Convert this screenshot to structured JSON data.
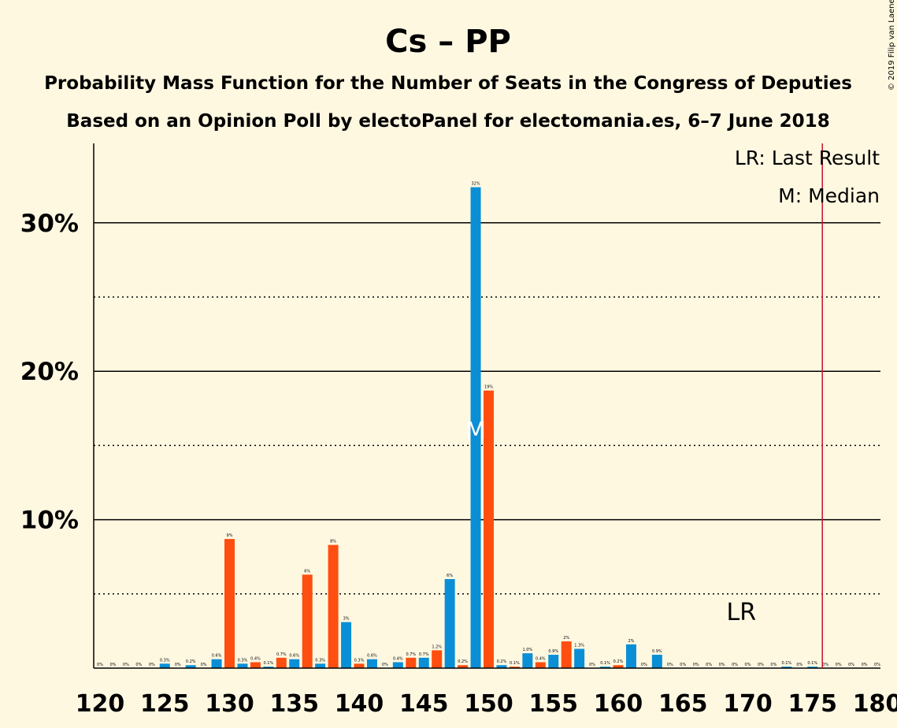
{
  "chart_data": {
    "type": "bar",
    "title": "Cs – PP",
    "subtitle": "Probability Mass Function for the Number of Seats in the Congress of Deputies",
    "source_line": "Based on an Opinion Poll by electoPanel for electomania.es, 6–7 June 2018",
    "copyright": "© 2019 Filip van Laenen",
    "legend": [
      "LR: Last Result",
      "M: Median"
    ],
    "xlim": [
      120,
      180
    ],
    "ylim": [
      0,
      35
    ],
    "yticks": [
      {
        "value": 10,
        "label": "10%"
      },
      {
        "value": 20,
        "label": "20%"
      },
      {
        "value": 30,
        "label": "30%"
      }
    ],
    "xticks": [
      120,
      125,
      130,
      135,
      140,
      145,
      150,
      155,
      160,
      165,
      170,
      175,
      180
    ],
    "grid": {
      "solid": [
        10,
        20,
        30
      ],
      "dotted": [
        5,
        15,
        25
      ]
    },
    "colors": {
      "odd": "#0A8FD6",
      "even": "#FF4E0F",
      "last_result_line": "#C8102E",
      "background": "#FFF8E1"
    },
    "last_result": {
      "seats": 176,
      "label": "LR"
    },
    "median": {
      "seats": 149,
      "label": "M"
    },
    "bars": [
      {
        "seats": 120,
        "value": 0,
        "label": "0%"
      },
      {
        "seats": 121,
        "value": 0,
        "label": "0%"
      },
      {
        "seats": 122,
        "value": 0,
        "label": "0%"
      },
      {
        "seats": 123,
        "value": 0,
        "label": "0%"
      },
      {
        "seats": 124,
        "value": 0,
        "label": "0%"
      },
      {
        "seats": 125,
        "value": 0.3,
        "label": "0.3%"
      },
      {
        "seats": 126,
        "value": 0,
        "label": "0%"
      },
      {
        "seats": 127,
        "value": 0.2,
        "label": "0.2%"
      },
      {
        "seats": 128,
        "value": 0,
        "label": "0%"
      },
      {
        "seats": 129,
        "value": 0.6,
        "label": "0.6%"
      },
      {
        "seats": 130,
        "value": 8.7,
        "label": "9%"
      },
      {
        "seats": 131,
        "value": 0.3,
        "label": "0.3%"
      },
      {
        "seats": 132,
        "value": 0.4,
        "label": "0.4%"
      },
      {
        "seats": 133,
        "value": 0.1,
        "label": "0.1%"
      },
      {
        "seats": 134,
        "value": 0.7,
        "label": "0.7%"
      },
      {
        "seats": 135,
        "value": 0.6,
        "label": "0.6%"
      },
      {
        "seats": 136,
        "value": 6.3,
        "label": "6%"
      },
      {
        "seats": 137,
        "value": 0.3,
        "label": "0.3%"
      },
      {
        "seats": 138,
        "value": 8.3,
        "label": "8%"
      },
      {
        "seats": 139,
        "value": 3.1,
        "label": "3%"
      },
      {
        "seats": 140,
        "value": 0.3,
        "label": "0.3%"
      },
      {
        "seats": 141,
        "value": 0.6,
        "label": "0.6%"
      },
      {
        "seats": 142,
        "value": 0,
        "label": "0%"
      },
      {
        "seats": 143,
        "value": 0.4,
        "label": "0.4%"
      },
      {
        "seats": 144,
        "value": 0.7,
        "label": "0.7%"
      },
      {
        "seats": 145,
        "value": 0.7,
        "label": "0.7%"
      },
      {
        "seats": 146,
        "value": 1.2,
        "label": "1.2%"
      },
      {
        "seats": 147,
        "value": 6.0,
        "label": "6%"
      },
      {
        "seats": 148,
        "value": 0.2,
        "label": "0.2%"
      },
      {
        "seats": 149,
        "value": 32.4,
        "label": "32%"
      },
      {
        "seats": 150,
        "value": 18.7,
        "label": "19%"
      },
      {
        "seats": 151,
        "value": 0.2,
        "label": "0.2%"
      },
      {
        "seats": 152,
        "value": 0.1,
        "label": "0.1%"
      },
      {
        "seats": 153,
        "value": 1.0,
        "label": "1.0%"
      },
      {
        "seats": 154,
        "value": 0.4,
        "label": "0.4%"
      },
      {
        "seats": 155,
        "value": 0.9,
        "label": "0.9%"
      },
      {
        "seats": 156,
        "value": 1.8,
        "label": "2%"
      },
      {
        "seats": 157,
        "value": 1.3,
        "label": "1.3%"
      },
      {
        "seats": 158,
        "value": 0,
        "label": "0%"
      },
      {
        "seats": 159,
        "value": 0.1,
        "label": "0.1%"
      },
      {
        "seats": 160,
        "value": 0.2,
        "label": "0.2%"
      },
      {
        "seats": 161,
        "value": 1.6,
        "label": "2%"
      },
      {
        "seats": 162,
        "value": 0,
        "label": "0%"
      },
      {
        "seats": 163,
        "value": 0.9,
        "label": "0.9%"
      },
      {
        "seats": 164,
        "value": 0,
        "label": "0%"
      },
      {
        "seats": 165,
        "value": 0,
        "label": "0%"
      },
      {
        "seats": 166,
        "value": 0,
        "label": "0%"
      },
      {
        "seats": 167,
        "value": 0,
        "label": "0%"
      },
      {
        "seats": 168,
        "value": 0,
        "label": "0%"
      },
      {
        "seats": 169,
        "value": 0,
        "label": "0%"
      },
      {
        "seats": 170,
        "value": 0,
        "label": "0%"
      },
      {
        "seats": 171,
        "value": 0,
        "label": "0%"
      },
      {
        "seats": 172,
        "value": 0,
        "label": "0%"
      },
      {
        "seats": 173,
        "value": 0.1,
        "label": "0.1%"
      },
      {
        "seats": 174,
        "value": 0,
        "label": "0%"
      },
      {
        "seats": 175,
        "value": 0.1,
        "label": "0.1%"
      },
      {
        "seats": 176,
        "value": 0,
        "label": "0%"
      },
      {
        "seats": 177,
        "value": 0,
        "label": "0%"
      },
      {
        "seats": 178,
        "value": 0,
        "label": "0%"
      },
      {
        "seats": 179,
        "value": 0,
        "label": "0%"
      },
      {
        "seats": 180,
        "value": 0,
        "label": "0%"
      }
    ]
  }
}
